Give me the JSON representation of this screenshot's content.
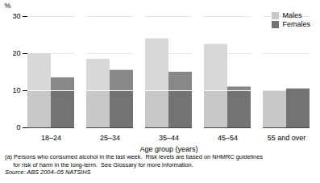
{
  "chart_data": {
    "type": "bar",
    "stacked": true,
    "grid": true,
    "legend": "upper right",
    "xlabel": "Age group (years)",
    "ylabel": "%",
    "categories": [
      "18–24",
      "25–34",
      "35–44",
      "45–54",
      "55 and over"
    ],
    "series": [
      {
        "name": "Males",
        "color": "#c8c8c8",
        "segments": [
          {
            "values": [
              10.0,
              10.0,
              10.0,
              10.0,
              9.8
            ],
            "color": "#c8c8c8"
          },
          {
            "values": [
              10.0,
              8.5,
              14.0,
              12.5,
              0.0
            ],
            "color": "#d8d8d8"
          }
        ]
      },
      {
        "name": "Females",
        "color": "#737373",
        "segments": [
          {
            "values": [
              10.0,
              10.0,
              10.0,
              10.0,
              10.5
            ],
            "color": "#737373"
          },
          {
            "values": [
              3.5,
              5.5,
              5.0,
              1.0,
              0.0
            ],
            "color": "#888888"
          }
        ]
      }
    ],
    "ylim": [
      0,
      30
    ],
    "yticks": [
      0,
      10,
      20,
      30
    ],
    "notes": [
      "(a) Persons who consumed alcohol in the last week.  Risk levels are based on NHMRC guidelines",
      "     for risk of harm in the long-term.  See Glossary for more information."
    ],
    "source": "Source: ABS 2004–05 NATSIHS"
  }
}
